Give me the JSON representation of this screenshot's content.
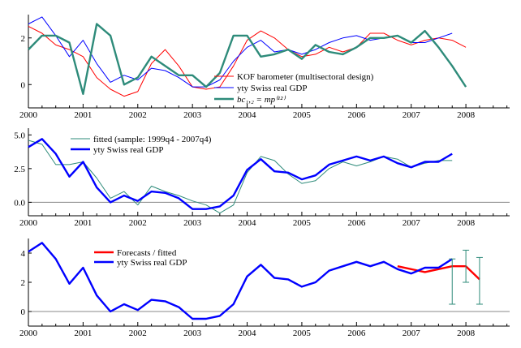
{
  "chart_data": [
    {
      "type": "line",
      "x_ticks": [
        "2000",
        "2001",
        "2002",
        "2003",
        "2004",
        "2005",
        "2006",
        "2007",
        "2008"
      ],
      "ylim": [
        -1,
        3
      ],
      "y_ticks": [
        "0",
        "2"
      ],
      "legend_position": "bottom-center",
      "series": [
        {
          "name": "KOF barometer (multisectoral design)",
          "color": "#ff0000",
          "x": [
            2000.0,
            2000.25,
            2000.5,
            2000.75,
            2001.0,
            2001.25,
            2001.5,
            2001.75,
            2002.0,
            2002.25,
            2002.5,
            2002.75,
            2003.0,
            2003.25,
            2003.5,
            2003.75,
            2004.0,
            2004.25,
            2004.5,
            2004.75,
            2005.0,
            2005.25,
            2005.5,
            2005.75,
            2006.0,
            2006.25,
            2006.5,
            2006.75,
            2007.0,
            2007.25,
            2007.5,
            2007.75,
            2008.0
          ],
          "values": [
            2.5,
            2.2,
            1.7,
            1.5,
            1.2,
            0.3,
            -0.2,
            -0.5,
            -0.3,
            0.9,
            1.5,
            0.8,
            -0.1,
            -0.2,
            -0.1,
            0.8,
            1.9,
            2.3,
            2.0,
            1.5,
            1.2,
            1.3,
            1.6,
            1.4,
            1.6,
            2.2,
            2.2,
            1.9,
            1.7,
            1.9,
            2.0,
            1.9,
            1.6
          ]
        },
        {
          "name": "yty Swiss real GDP",
          "color": "#0000ff",
          "x": [
            2000.0,
            2000.25,
            2000.5,
            2000.75,
            2001.0,
            2001.25,
            2001.5,
            2001.75,
            2002.0,
            2002.25,
            2002.5,
            2002.75,
            2003.0,
            2003.25,
            2003.5,
            2003.75,
            2004.0,
            2004.25,
            2004.5,
            2004.75,
            2005.0,
            2005.25,
            2005.5,
            2005.75,
            2006.0,
            2006.25,
            2006.5,
            2006.75,
            2007.0,
            2007.25,
            2007.5,
            2007.75
          ],
          "values": [
            2.6,
            2.9,
            2.1,
            1.2,
            1.9,
            0.9,
            0.1,
            0.4,
            0.2,
            0.7,
            0.6,
            0.3,
            -0.1,
            -0.1,
            0.2,
            1.0,
            1.6,
            1.9,
            1.4,
            1.5,
            1.3,
            1.5,
            1.8,
            2.0,
            2.1,
            1.9,
            2.0,
            2.1,
            1.8,
            1.8,
            2.0,
            2.2
          ]
        },
        {
          "name": "bc₁,₂ = mp⁽¹²⁾",
          "color": "#2e8b7a",
          "x": [
            2000.0,
            2000.25,
            2000.5,
            2000.75,
            2001.0,
            2001.25,
            2001.5,
            2001.75,
            2002.0,
            2002.25,
            2002.5,
            2002.75,
            2003.0,
            2003.25,
            2003.5,
            2003.75,
            2004.0,
            2004.25,
            2004.5,
            2004.75,
            2005.0,
            2005.25,
            2005.5,
            2005.75,
            2006.0,
            2006.25,
            2006.5,
            2006.75,
            2007.0,
            2007.25,
            2007.5,
            2007.75,
            2008.0
          ],
          "values": [
            1.5,
            2.1,
            2.1,
            1.8,
            -0.4,
            2.6,
            2.1,
            0.0,
            0.3,
            1.2,
            0.8,
            0.4,
            0.4,
            -0.1,
            0.5,
            2.1,
            2.1,
            1.2,
            1.3,
            1.5,
            1.1,
            1.7,
            1.4,
            1.3,
            1.6,
            2.0,
            2.0,
            2.1,
            1.8,
            2.3,
            1.6,
            0.8,
            -0.1
          ]
        }
      ]
    },
    {
      "type": "line",
      "x_ticks": [
        "2000",
        "2001",
        "2002",
        "2003",
        "2004",
        "2005",
        "2006",
        "2007",
        "2008"
      ],
      "ylim": [
        -1,
        5.5
      ],
      "y_ticks": [
        "0.0",
        "2.5",
        "5.0"
      ],
      "legend_position": "top-center",
      "series": [
        {
          "name": "fitted (sample: 1999q4 - 2007q4)",
          "color": "#2e8b7a",
          "x": [
            2000.0,
            2000.25,
            2000.5,
            2000.75,
            2001.0,
            2001.25,
            2001.5,
            2001.75,
            2002.0,
            2002.25,
            2002.5,
            2002.75,
            2003.0,
            2003.25,
            2003.5,
            2003.75,
            2004.0,
            2004.25,
            2004.5,
            2004.75,
            2005.0,
            2005.25,
            2005.5,
            2005.75,
            2006.0,
            2006.25,
            2006.5,
            2006.75,
            2007.0,
            2007.25,
            2007.5,
            2007.75
          ],
          "values": [
            4.6,
            4.3,
            2.8,
            2.8,
            3.0,
            1.8,
            0.3,
            0.8,
            -0.2,
            1.2,
            0.8,
            0.5,
            0.1,
            -0.2,
            -0.8,
            -0.2,
            2.2,
            3.4,
            3.1,
            2.1,
            1.4,
            1.6,
            2.5,
            3.0,
            2.7,
            3.0,
            3.4,
            3.2,
            2.6,
            2.9,
            3.1,
            3.1
          ]
        },
        {
          "name": "yty Swiss real GDP",
          "color": "#0000ff",
          "x": [
            2000.0,
            2000.25,
            2000.5,
            2000.75,
            2001.0,
            2001.25,
            2001.5,
            2001.75,
            2002.0,
            2002.25,
            2002.5,
            2002.75,
            2003.0,
            2003.25,
            2003.5,
            2003.75,
            2004.0,
            2004.25,
            2004.5,
            2004.75,
            2005.0,
            2005.25,
            2005.5,
            2005.75,
            2006.0,
            2006.25,
            2006.5,
            2006.75,
            2007.0,
            2007.25,
            2007.5,
            2007.75
          ],
          "values": [
            4.1,
            4.7,
            3.6,
            1.9,
            3.0,
            1.1,
            0.0,
            0.5,
            0.1,
            0.8,
            0.7,
            0.3,
            -0.5,
            -0.5,
            -0.3,
            0.5,
            2.4,
            3.2,
            2.3,
            2.2,
            1.7,
            2.0,
            2.8,
            3.1,
            3.4,
            3.1,
            3.4,
            2.9,
            2.6,
            3.0,
            3.0,
            3.6
          ]
        }
      ]
    },
    {
      "type": "line",
      "x_ticks": [
        "2000",
        "2001",
        "2002",
        "2003",
        "2004",
        "2005",
        "2006",
        "2007",
        "2008"
      ],
      "ylim": [
        -1,
        5
      ],
      "y_ticks": [
        "0",
        "2",
        "4"
      ],
      "legend_position": "top-center",
      "series": [
        {
          "name": "Forecasts / fitted",
          "color": "#ff0000",
          "x": [
            2006.75,
            2007.0,
            2007.25,
            2007.5,
            2007.75,
            2008.0,
            2008.25
          ],
          "values": [
            3.1,
            2.9,
            2.7,
            2.9,
            3.1,
            3.1,
            2.2
          ]
        },
        {
          "name": "yty Swiss real GDP",
          "color": "#0000ff",
          "x": [
            2000.0,
            2000.25,
            2000.5,
            2000.75,
            2001.0,
            2001.25,
            2001.5,
            2001.75,
            2002.0,
            2002.25,
            2002.5,
            2002.75,
            2003.0,
            2003.25,
            2003.5,
            2003.75,
            2004.0,
            2004.25,
            2004.5,
            2004.75,
            2005.0,
            2005.25,
            2005.5,
            2005.75,
            2006.0,
            2006.25,
            2006.5,
            2006.75,
            2007.0,
            2007.25,
            2007.5,
            2007.75
          ],
          "values": [
            4.1,
            4.7,
            3.6,
            1.9,
            3.0,
            1.1,
            0.0,
            0.5,
            0.1,
            0.8,
            0.7,
            0.3,
            -0.5,
            -0.5,
            -0.3,
            0.5,
            2.4,
            3.2,
            2.3,
            2.2,
            1.7,
            2.0,
            2.8,
            3.1,
            3.4,
            3.1,
            3.4,
            2.9,
            2.6,
            3.0,
            3.0,
            3.6
          ]
        }
      ],
      "error_bars": {
        "color": "#2e8b7a",
        "x": [
          2007.75,
          2008.0,
          2008.25
        ],
        "low": [
          0.5,
          2.0,
          0.5
        ],
        "high": [
          3.6,
          4.2,
          3.7
        ]
      }
    }
  ]
}
